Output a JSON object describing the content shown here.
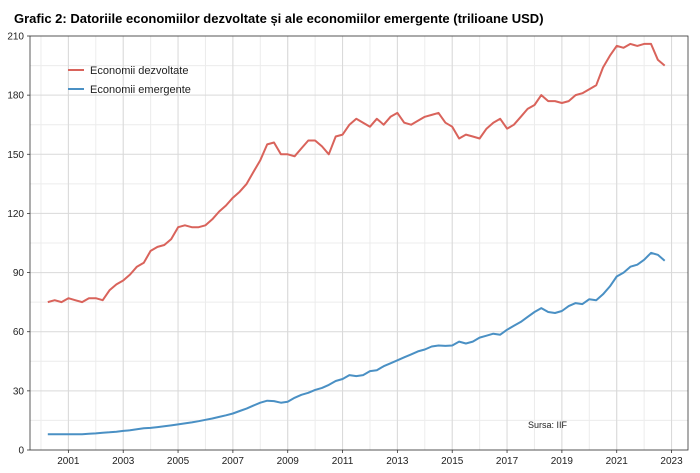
{
  "chart_data": {
    "type": "line",
    "title": "Grafic 2: Datoriile economiilor dezvoltate și ale economiilor emergente (trilioane USD)",
    "xlabel": "",
    "ylabel": "",
    "ylim": [
      0,
      210
    ],
    "xlim": [
      1999.6,
      2023.6
    ],
    "yticks": [
      0,
      30,
      60,
      90,
      120,
      150,
      180,
      210
    ],
    "xticks": [
      2001,
      2003,
      2005,
      2007,
      2009,
      2011,
      2013,
      2015,
      2017,
      2019,
      2021,
      2023
    ],
    "grid": true,
    "legend_position": "top-left",
    "source": "Sursa: IIF",
    "series": [
      {
        "name": "Economii dezvoltate",
        "color": "#d9635b",
        "x": [
          2000.25,
          2000.5,
          2000.75,
          2001.0,
          2001.25,
          2001.5,
          2001.75,
          2002.0,
          2002.25,
          2002.5,
          2002.75,
          2003.0,
          2003.25,
          2003.5,
          2003.75,
          2004.0,
          2004.25,
          2004.5,
          2004.75,
          2005.0,
          2005.25,
          2005.5,
          2005.75,
          2006.0,
          2006.25,
          2006.5,
          2006.75,
          2007.0,
          2007.25,
          2007.5,
          2007.75,
          2008.0,
          2008.25,
          2008.5,
          2008.75,
          2009.0,
          2009.25,
          2009.5,
          2009.75,
          2010.0,
          2010.25,
          2010.5,
          2010.75,
          2011.0,
          2011.25,
          2011.5,
          2011.75,
          2012.0,
          2012.25,
          2012.5,
          2012.75,
          2013.0,
          2013.25,
          2013.5,
          2013.75,
          2014.0,
          2014.25,
          2014.5,
          2014.75,
          2015.0,
          2015.25,
          2015.5,
          2015.75,
          2016.0,
          2016.25,
          2016.5,
          2016.75,
          2017.0,
          2017.25,
          2017.5,
          2017.75,
          2018.0,
          2018.25,
          2018.5,
          2018.75,
          2019.0,
          2019.25,
          2019.5,
          2019.75,
          2020.0,
          2020.25,
          2020.5,
          2020.75,
          2021.0,
          2021.25,
          2021.5,
          2021.75,
          2022.0,
          2022.25,
          2022.5,
          2022.75
        ],
        "values": [
          75,
          76,
          75,
          77,
          76,
          75,
          77,
          77,
          76,
          81,
          84,
          86,
          89,
          93,
          95,
          101,
          103,
          104,
          107,
          113,
          114,
          113,
          113,
          114,
          117,
          121,
          124,
          128,
          131,
          135,
          141,
          147,
          155,
          156,
          150,
          150,
          149,
          153,
          157,
          157,
          154,
          150,
          159,
          160,
          165,
          168,
          166,
          164,
          168,
          165,
          169,
          171,
          166,
          165,
          167,
          169,
          170,
          171,
          166,
          164,
          158,
          160,
          159,
          158,
          163,
          166,
          168,
          163,
          165,
          169,
          173,
          175,
          180,
          177,
          177,
          176,
          177,
          180,
          181,
          183,
          185,
          194,
          200,
          205,
          204,
          206,
          205,
          206,
          206,
          198,
          195
        ]
      },
      {
        "name": "Economii emergente",
        "color": "#4a90c4",
        "x": [
          2000.25,
          2000.5,
          2000.75,
          2001.0,
          2001.25,
          2001.5,
          2001.75,
          2002.0,
          2002.25,
          2002.5,
          2002.75,
          2003.0,
          2003.25,
          2003.5,
          2003.75,
          2004.0,
          2004.25,
          2004.5,
          2004.75,
          2005.0,
          2005.25,
          2005.5,
          2005.75,
          2006.0,
          2006.25,
          2006.5,
          2006.75,
          2007.0,
          2007.25,
          2007.5,
          2007.75,
          2008.0,
          2008.25,
          2008.5,
          2008.75,
          2009.0,
          2009.25,
          2009.5,
          2009.75,
          2010.0,
          2010.25,
          2010.5,
          2010.75,
          2011.0,
          2011.25,
          2011.5,
          2011.75,
          2012.0,
          2012.25,
          2012.5,
          2012.75,
          2013.0,
          2013.25,
          2013.5,
          2013.75,
          2014.0,
          2014.25,
          2014.5,
          2014.75,
          2015.0,
          2015.25,
          2015.5,
          2015.75,
          2016.0,
          2016.25,
          2016.5,
          2016.75,
          2017.0,
          2017.25,
          2017.5,
          2017.75,
          2018.0,
          2018.25,
          2018.5,
          2018.75,
          2019.0,
          2019.25,
          2019.5,
          2019.75,
          2020.0,
          2020.25,
          2020.5,
          2020.75,
          2021.0,
          2021.25,
          2021.5,
          2021.75,
          2022.0,
          2022.25,
          2022.5,
          2022.75
        ],
        "values": [
          8,
          8,
          8,
          8,
          8,
          8,
          8.2,
          8.4,
          8.8,
          9,
          9.3,
          9.7,
          10,
          10.5,
          11,
          11.2,
          11.6,
          12,
          12.5,
          13,
          13.5,
          14,
          14.6,
          15.3,
          16,
          16.8,
          17.6,
          18.5,
          19.8,
          21,
          22.5,
          24,
          25,
          24.8,
          24,
          24.5,
          26.5,
          28,
          29,
          30.5,
          31.5,
          33,
          35,
          36,
          38,
          37.5,
          38,
          40,
          40.5,
          42.5,
          44,
          45.5,
          47,
          48.5,
          50,
          51,
          52.5,
          53,
          52.8,
          53,
          55,
          54,
          55,
          57,
          58,
          59,
          58.5,
          61,
          63,
          65,
          67.5,
          70,
          72,
          70,
          69.5,
          70.5,
          73,
          74.5,
          74,
          76.5,
          76,
          79,
          83,
          88,
          90,
          93,
          94,
          96.5,
          100,
          99,
          96
        ]
      }
    ]
  }
}
